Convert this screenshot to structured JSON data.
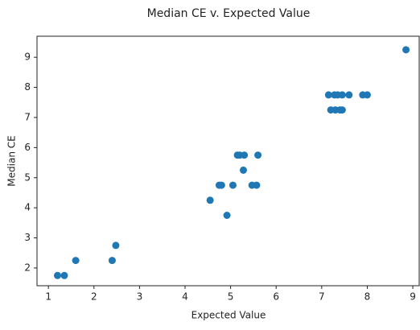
{
  "chart_data": {
    "type": "scatter",
    "title": "Median CE v. Expected Value",
    "x_label": "Expected Value",
    "y_label": "Median CE",
    "color": "#1f77b4",
    "x": [
      1.2,
      1.35,
      1.6,
      2.4,
      2.48,
      4.55,
      4.75,
      4.8,
      4.92,
      5.05,
      5.15,
      5.2,
      5.3,
      5.28,
      5.47,
      5.57,
      5.6,
      7.15,
      7.2,
      7.3,
      7.28,
      7.35,
      7.4,
      7.45,
      7.45,
      7.6,
      7.9,
      8.0,
      8.85
    ],
    "values": [
      1.75,
      1.75,
      2.25,
      2.25,
      2.75,
      4.25,
      4.75,
      4.75,
      3.75,
      4.75,
      5.75,
      5.75,
      5.75,
      5.25,
      4.75,
      4.75,
      5.75,
      7.75,
      7.25,
      7.25,
      7.75,
      7.75,
      7.25,
      7.25,
      7.75,
      7.75,
      7.75,
      7.75,
      9.25
    ],
    "xlim": [
      0.75,
      9.14
    ],
    "ylim": [
      1.41,
      9.7
    ],
    "xticks": [
      1,
      2,
      3,
      4,
      5,
      6,
      7,
      8,
      9
    ],
    "yticks": [
      2,
      3,
      4,
      5,
      6,
      7,
      8,
      9
    ]
  }
}
